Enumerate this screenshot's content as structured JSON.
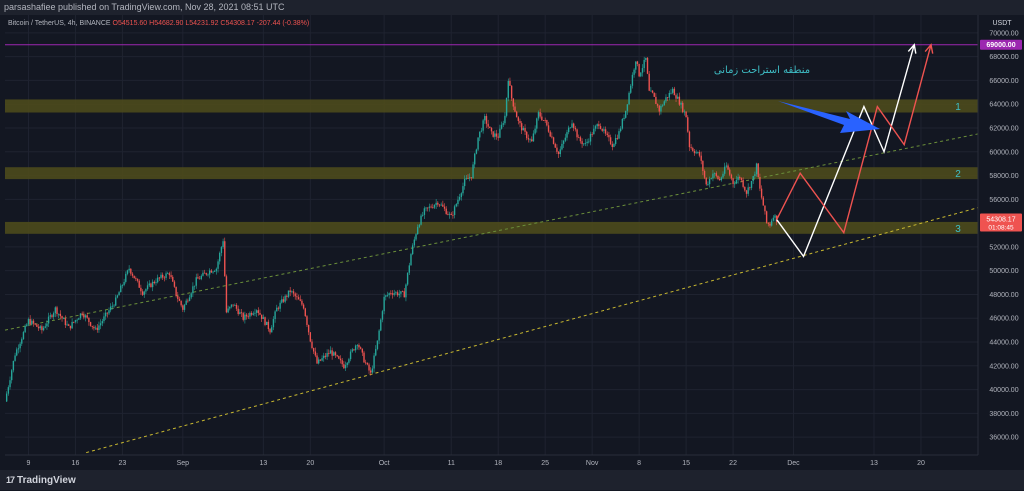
{
  "header": {
    "published_text": "parsashafiee published on TradingView.com, Nov 28, 2021 08:51 UTC"
  },
  "legend": {
    "symbol": "Bitcoin / TetherUS, 4h, BINANCE",
    "open": "O54515.60",
    "high": "H54682.90",
    "low": "L54231.92",
    "close": "C54308.17",
    "change": "-207.44 (-0.38%)"
  },
  "footer": {
    "logo_text": "TradingView",
    "logo_mark": "17"
  },
  "annotations": {
    "persian_text": "منطقه استراحت زمانی",
    "zone_labels": [
      "1",
      "2",
      "3"
    ],
    "currency": "USDT"
  },
  "price_tags": {
    "target": "69000.00",
    "current": "54308.17",
    "countdown": "01:08:45"
  },
  "colors": {
    "background": "#131722",
    "zone": "#4d4a1c",
    "candle_up": "#26a69a",
    "candle_down": "#ef5350",
    "target_line": "#9c27b0",
    "path_white": "#ffffff",
    "path_red": "#ef5350",
    "arrow": "#2962ff",
    "trend": "#c8b830"
  },
  "chart_data": {
    "type": "candlestick",
    "title": "Bitcoin / TetherUS, 4h, BINANCE",
    "ylim": [
      34500,
      71500
    ],
    "y_ticks": [
      36000,
      38000,
      40000,
      42000,
      44000,
      46000,
      48000,
      50000,
      52000,
      54000,
      56000,
      58000,
      60000,
      62000,
      64000,
      66000,
      68000,
      70000
    ],
    "x_ticks": [
      {
        "label": "9",
        "day": 9
      },
      {
        "label": "16",
        "day": 16
      },
      {
        "label": "23",
        "day": 23
      },
      {
        "label": "Sep",
        "day": 32
      },
      {
        "label": "13",
        "day": 44
      },
      {
        "label": "20",
        "day": 51
      },
      {
        "label": "Oct",
        "day": 62
      },
      {
        "label": "11",
        "day": 72
      },
      {
        "label": "18",
        "day": 79
      },
      {
        "label": "25",
        "day": 86
      },
      {
        "label": "Nov",
        "day": 93
      },
      {
        "label": "8",
        "day": 100
      },
      {
        "label": "15",
        "day": 107
      },
      {
        "label": "22",
        "day": 114
      },
      {
        "label": "Dec",
        "day": 123
      },
      {
        "label": "13",
        "day": 135
      },
      {
        "label": "20",
        "day": 142
      }
    ],
    "xlim": [
      5.5,
      150.5
    ],
    "price_path": [
      [
        5.5,
        39000
      ],
      [
        7,
        43000
      ],
      [
        9,
        45800
      ],
      [
        11,
        45000
      ],
      [
        13,
        46800
      ],
      [
        15,
        45200
      ],
      [
        17,
        46500
      ],
      [
        19,
        45000
      ],
      [
        20,
        45800
      ],
      [
        22,
        47500
      ],
      [
        24,
        50200
      ],
      [
        26,
        48200
      ],
      [
        28,
        49200
      ],
      [
        30,
        49800
      ],
      [
        31,
        48000
      ],
      [
        32,
        46800
      ],
      [
        34,
        49200
      ],
      [
        36,
        50000
      ],
      [
        37,
        50200
      ],
      [
        38,
        52600
      ],
      [
        38.5,
        46500
      ],
      [
        39.5,
        47200
      ],
      [
        41,
        46000
      ],
      [
        43,
        46800
      ],
      [
        45,
        45000
      ],
      [
        46,
        46800
      ],
      [
        48,
        48300
      ],
      [
        50,
        47000
      ],
      [
        51,
        44200
      ],
      [
        52,
        42200
      ],
      [
        54,
        43200
      ],
      [
        56,
        42000
      ],
      [
        58,
        44000
      ],
      [
        59,
        42500
      ],
      [
        60,
        41300
      ],
      [
        61,
        44000
      ],
      [
        62,
        47700
      ],
      [
        63,
        48200
      ],
      [
        65,
        48000
      ],
      [
        66,
        51400
      ],
      [
        67,
        53800
      ],
      [
        68,
        55000
      ],
      [
        70,
        55800
      ],
      [
        72,
        54500
      ],
      [
        73,
        56000
      ],
      [
        74,
        57500
      ],
      [
        75,
        58000
      ],
      [
        76,
        61200
      ],
      [
        77,
        62800
      ],
      [
        78,
        61500
      ],
      [
        79,
        61300
      ],
      [
        80,
        63000
      ],
      [
        80.5,
        66200
      ],
      [
        81,
        64500
      ],
      [
        82,
        62500
      ],
      [
        83,
        61500
      ],
      [
        84,
        60800
      ],
      [
        85,
        63200
      ],
      [
        86,
        62500
      ],
      [
        87,
        61200
      ],
      [
        88,
        59800
      ],
      [
        89,
        61200
      ],
      [
        90,
        62600
      ],
      [
        91,
        61000
      ],
      [
        92,
        60600
      ],
      [
        93,
        61600
      ],
      [
        94,
        62400
      ],
      [
        95,
        61400
      ],
      [
        96,
        60600
      ],
      [
        97,
        61600
      ],
      [
        98,
        63500
      ],
      [
        99,
        66400
      ],
      [
        99.5,
        67800
      ],
      [
        100,
        66500
      ],
      [
        101,
        67800
      ],
      [
        101.5,
        65000
      ],
      [
        102,
        64800
      ],
      [
        103,
        63500
      ],
      [
        104,
        64500
      ],
      [
        105,
        65200
      ],
      [
        106,
        64200
      ],
      [
        107,
        63000
      ],
      [
        107.5,
        60500
      ],
      [
        108,
        60200
      ],
      [
        109,
        59700
      ],
      [
        110,
        57200
      ],
      [
        111,
        58200
      ],
      [
        112,
        57600
      ],
      [
        113,
        58800
      ],
      [
        114,
        57400
      ],
      [
        115,
        57900
      ],
      [
        116,
        56600
      ],
      [
        117,
        57800
      ],
      [
        117.5,
        58800
      ],
      [
        118,
        56800
      ],
      [
        118.5,
        55500
      ],
      [
        119,
        54000
      ],
      [
        119.5,
        53900
      ],
      [
        120,
        54700
      ],
      [
        120.5,
        54300
      ]
    ],
    "zones": [
      {
        "label": "1",
        "from": 63300,
        "to": 64400
      },
      {
        "label": "2",
        "from": 57700,
        "to": 58700
      },
      {
        "label": "3",
        "from": 53100,
        "to": 54100
      }
    ],
    "target_level": 69000,
    "current_price": 54308.17,
    "trend_lines": [
      {
        "style": "dashed-green",
        "points": [
          [
            5.5,
            45000
          ],
          [
            150.5,
            61500
          ]
        ]
      },
      {
        "style": "dashed-yellow",
        "points": [
          [
            17.6,
            34700
          ],
          [
            150.5,
            55300
          ]
        ]
      }
    ],
    "forecast_white": [
      [
        120.5,
        54300
      ],
      [
        124.5,
        51200
      ],
      [
        133.5,
        63800
      ],
      [
        136.5,
        60000
      ],
      [
        141,
        69000
      ]
    ],
    "forecast_red": [
      [
        120.5,
        54300
      ],
      [
        124,
        58200
      ],
      [
        130.5,
        53200
      ],
      [
        135.5,
        63800
      ],
      [
        139.5,
        60600
      ],
      [
        143.5,
        69000
      ]
    ]
  }
}
